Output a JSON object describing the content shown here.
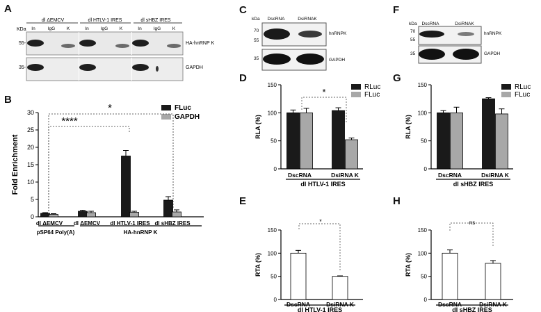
{
  "panels": {
    "A": {
      "letter": "A",
      "kda_label": "KDa",
      "groups": [
        "dl ΔEMCV",
        "dl HTLV-1 IRES",
        "dl sHBZ IRES"
      ],
      "lanes": [
        "In",
        "IgG",
        "K",
        "In",
        "IgG",
        "K",
        "In",
        "IgG",
        "K"
      ],
      "markers": [
        "55-",
        "35-"
      ],
      "bands": [
        "HA-hnRNP K",
        "GAPDH"
      ]
    },
    "B": {
      "letter": "B",
      "significance": [
        "*",
        "****"
      ],
      "group_labels": [
        "pSP64 Poly(A)",
        "HA-hnRNP K"
      ]
    },
    "C": {
      "letter": "C",
      "kda_label": "kDa",
      "lanes": [
        "DscRNA",
        "DsiRNAK"
      ],
      "markers": [
        "70",
        "55",
        "35"
      ],
      "bands": [
        "hnRNPK",
        "GAPDH"
      ]
    },
    "D": {
      "letter": "D",
      "significance": "*",
      "group_label": "dl HTLV-1 IRES"
    },
    "E": {
      "letter": "E",
      "significance": "*",
      "group_label": "dl HTLV-1 IRES"
    },
    "F": {
      "letter": "F",
      "kda_label": "kDa",
      "lanes": [
        "DscRNA",
        "DsiRNAK"
      ],
      "markers": [
        "70",
        "55",
        "35"
      ],
      "bands": [
        "hnRNPK",
        "GAPDH"
      ]
    },
    "G": {
      "letter": "G",
      "group_label": "dl sHBZ IRES"
    },
    "H": {
      "letter": "H",
      "significance": "ns",
      "group_label": "dl sHBZ IRES"
    }
  },
  "colors": {
    "black_bar": "#1a1a1a",
    "grey_bar": "#a8a8a8",
    "white_bar": "#ffffff"
  },
  "chart_data": [
    {
      "id": "B",
      "type": "bar",
      "ylabel": "Fold Enrichment",
      "ylim": [
        0,
        30
      ],
      "yticks": [
        0,
        5,
        10,
        15,
        20,
        25,
        30
      ],
      "categories": [
        "dl ΔEMCV",
        "dl ΔEMCV",
        "dl HTLV-1 IRES",
        "dl sHBZ IRES"
      ],
      "series": [
        {
          "name": "FLuc",
          "color": "#1a1a1a",
          "values": [
            1.0,
            1.6,
            17.5,
            4.8
          ],
          "errors": [
            0.2,
            0.3,
            1.6,
            1.0
          ]
        },
        {
          "name": "GAPDH",
          "color": "#a8a8a8",
          "values": [
            0.7,
            1.2,
            1.3,
            1.4
          ],
          "errors": [
            0.2,
            0.4,
            0.3,
            0.6
          ]
        }
      ],
      "legend_position": "top-right"
    },
    {
      "id": "D",
      "type": "bar",
      "ylabel": "RLA (%)",
      "xlabel": "dl HTLV-1 IRES",
      "ylim": [
        0,
        150
      ],
      "yticks": [
        0,
        50,
        100,
        150
      ],
      "categories": [
        "DscRNA",
        "DsiRNA K"
      ],
      "series": [
        {
          "name": "RLuc",
          "color": "#1a1a1a",
          "values": [
            100,
            104
          ],
          "errors": [
            5,
            5
          ]
        },
        {
          "name": "FLuc",
          "color": "#a8a8a8",
          "values": [
            100,
            52
          ],
          "errors": [
            8,
            3
          ]
        }
      ],
      "legend_position": "top-right"
    },
    {
      "id": "E",
      "type": "bar",
      "ylabel": "RTA (%)",
      "xlabel": "dl HTLV-1 IRES",
      "ylim": [
        0,
        150
      ],
      "yticks": [
        0,
        50,
        100,
        150
      ],
      "categories": [
        "DscRNA",
        "DsiRNA K"
      ],
      "series": [
        {
          "color": "#ffffff",
          "values": [
            100,
            50
          ],
          "errors": [
            6,
            1
          ]
        }
      ]
    },
    {
      "id": "G",
      "type": "bar",
      "ylabel": "RLA (%)",
      "xlabel": "dl sHBZ IRES",
      "ylim": [
        0,
        150
      ],
      "yticks": [
        0,
        50,
        100,
        150
      ],
      "categories": [
        "DscRNA",
        "DsiRNA K"
      ],
      "series": [
        {
          "name": "RLuc",
          "color": "#1a1a1a",
          "values": [
            100,
            125
          ],
          "errors": [
            4,
            2
          ]
        },
        {
          "name": "FLuc",
          "color": "#a8a8a8",
          "values": [
            100,
            98
          ],
          "errors": [
            10,
            9
          ]
        }
      ],
      "legend_position": "top-right"
    },
    {
      "id": "H",
      "type": "bar",
      "ylabel": "RTA (%)",
      "xlabel": "dl sHBZ IRES",
      "ylim": [
        0,
        150
      ],
      "yticks": [
        0,
        50,
        100,
        150
      ],
      "categories": [
        "DscRNA",
        "DsiRNA K"
      ],
      "series": [
        {
          "color": "#ffffff",
          "values": [
            100,
            78
          ],
          "errors": [
            7,
            6
          ]
        }
      ]
    }
  ]
}
